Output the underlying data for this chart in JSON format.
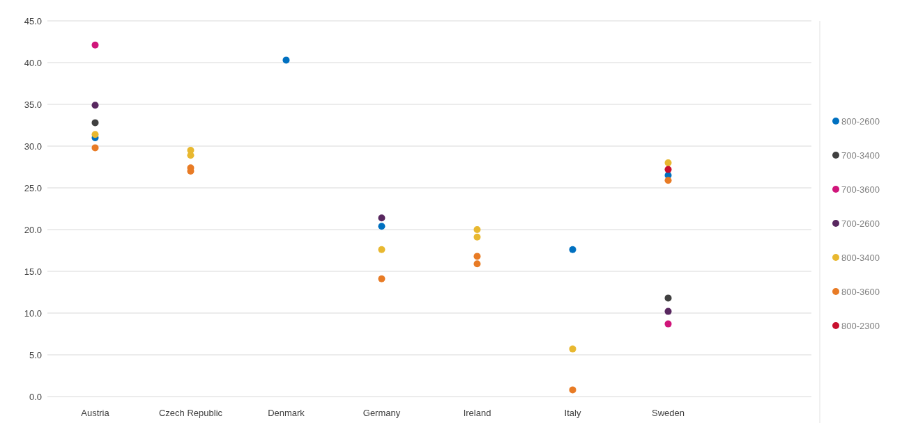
{
  "chart_data": {
    "type": "scatter",
    "categories": [
      "Austria",
      "Czech Republic",
      "Denmark",
      "Germany",
      "Ireland",
      "Italy",
      "Sweden"
    ],
    "ylim": [
      0,
      45
    ],
    "yticks": [
      {
        "value": 0,
        "label": "0.0"
      },
      {
        "value": 5,
        "label": "5.0"
      },
      {
        "value": 10,
        "label": "10.0"
      },
      {
        "value": 15,
        "label": "15.0"
      },
      {
        "value": 20,
        "label": "20.0"
      },
      {
        "value": 25,
        "label": "25.0"
      },
      {
        "value": 30,
        "label": "30.0"
      },
      {
        "value": 35,
        "label": "35.0"
      },
      {
        "value": 40,
        "label": "40.0"
      },
      {
        "value": 45,
        "label": "45.0"
      }
    ],
    "grid": "y",
    "legend": "right",
    "marker": "circle",
    "series": [
      {
        "name": "800-2600",
        "color": "#0070c0",
        "x": [
          "Austria",
          "Denmark",
          "Germany",
          "Italy",
          "Sweden"
        ],
        "values": [
          31.0,
          40.3,
          20.4,
          17.6,
          26.5
        ]
      },
      {
        "name": "700-3400",
        "color": "#404040",
        "x": [
          "Austria",
          "Sweden"
        ],
        "values": [
          32.8,
          11.8
        ]
      },
      {
        "name": "700-3600",
        "color": "#d0157a",
        "x": [
          "Austria",
          "Sweden"
        ],
        "values": [
          42.1,
          8.7
        ]
      },
      {
        "name": "700-2600",
        "color": "#58275f",
        "x": [
          "Austria",
          "Germany",
          "Sweden"
        ],
        "values": [
          34.9,
          21.4,
          10.2
        ]
      },
      {
        "name": "800-3400",
        "color": "#e8b830",
        "x": [
          "Austria",
          "Czech Republic",
          "Czech Republic",
          "Germany",
          "Ireland",
          "Ireland",
          "Italy",
          "Sweden"
        ],
        "values": [
          31.4,
          29.5,
          28.9,
          17.6,
          20.0,
          19.1,
          5.7,
          28.0
        ]
      },
      {
        "name": "800-3600",
        "color": "#e87b25",
        "x": [
          "Austria",
          "Czech Republic",
          "Czech Republic",
          "Germany",
          "Ireland",
          "Ireland",
          "Italy",
          "Sweden"
        ],
        "values": [
          29.8,
          27.4,
          27.0,
          14.1,
          16.8,
          15.9,
          0.8,
          25.9
        ]
      },
      {
        "name": "800-2300",
        "color": "#c8102e",
        "x": [
          "Sweden"
        ],
        "values": [
          27.2
        ]
      }
    ]
  }
}
